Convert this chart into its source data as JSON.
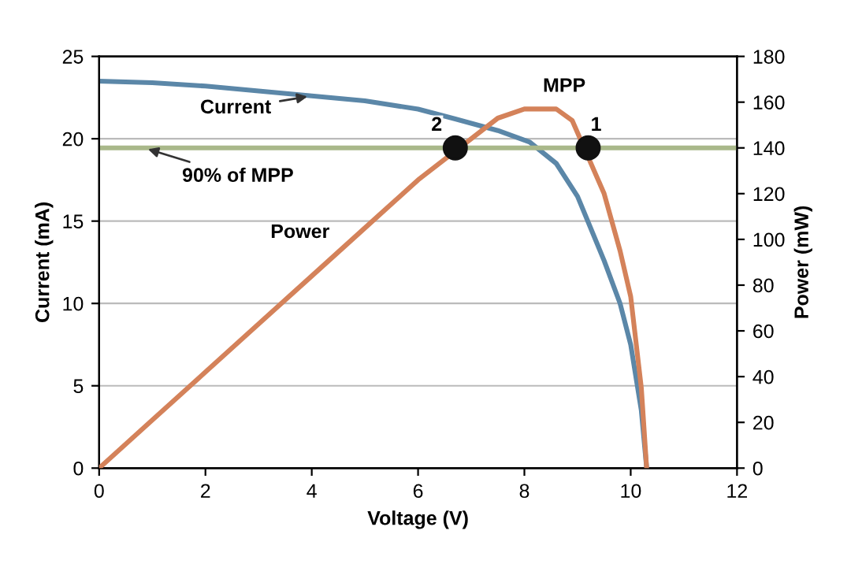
{
  "chart_data": {
    "type": "line",
    "xlabel": "Voltage (V)",
    "ylabel": "Current (mA)",
    "y2label": "Power (mW)",
    "xlim": [
      0,
      12
    ],
    "xticks": [
      0,
      2,
      4,
      6,
      8,
      10,
      12
    ],
    "ylim": [
      0,
      25
    ],
    "yticks": [
      0,
      5,
      10,
      15,
      20,
      25
    ],
    "y2lim": [
      0,
      180
    ],
    "y2ticks": [
      0,
      20,
      40,
      60,
      80,
      100,
      120,
      140,
      160,
      180
    ],
    "grid": "y",
    "legend": false,
    "marker": "none",
    "line_style": "solid",
    "series": [
      {
        "name": "Current",
        "color": "#5b87a8",
        "axis": "y",
        "x": [
          0,
          1,
          2,
          3,
          4,
          5,
          6,
          6.7,
          7.5,
          8.1,
          8.6,
          9,
          9.5,
          9.8,
          10,
          10.2,
          10.3
        ],
        "values": [
          23.5,
          23.4,
          23.2,
          22.9,
          22.6,
          22.3,
          21.8,
          21.2,
          20.5,
          19.8,
          18.5,
          16.5,
          12.6,
          10,
          7.5,
          3.5,
          0
        ]
      },
      {
        "name": "Power",
        "color": "#d4825a",
        "axis": "y2",
        "x": [
          0,
          1,
          2,
          3,
          4,
          5,
          6,
          7.5,
          8,
          8.6,
          8.9,
          9.5,
          9.8,
          10,
          10.2,
          10.3
        ],
        "values": [
          0,
          21,
          42,
          63,
          84,
          105,
          126,
          153,
          157,
          157,
          152,
          120,
          95,
          75,
          35,
          0
        ]
      },
      {
        "type": "scatter",
        "color": "#111111",
        "axis": "y2",
        "marker": "circle",
        "x": [
          6.7,
          9.2
        ],
        "values": [
          140,
          140
        ]
      }
    ],
    "ref_lines": [
      {
        "axis": "y2",
        "value": 140,
        "label": "90% of MPP",
        "color": "#a9b88a"
      }
    ],
    "annotations": [
      {
        "text": "MPP",
        "x": 8.6,
        "y": 21.8
      },
      {
        "text": "2",
        "x": 6.7,
        "y": 19.44
      },
      {
        "text": "1",
        "x": 9.2,
        "y": 19.44
      }
    ]
  }
}
